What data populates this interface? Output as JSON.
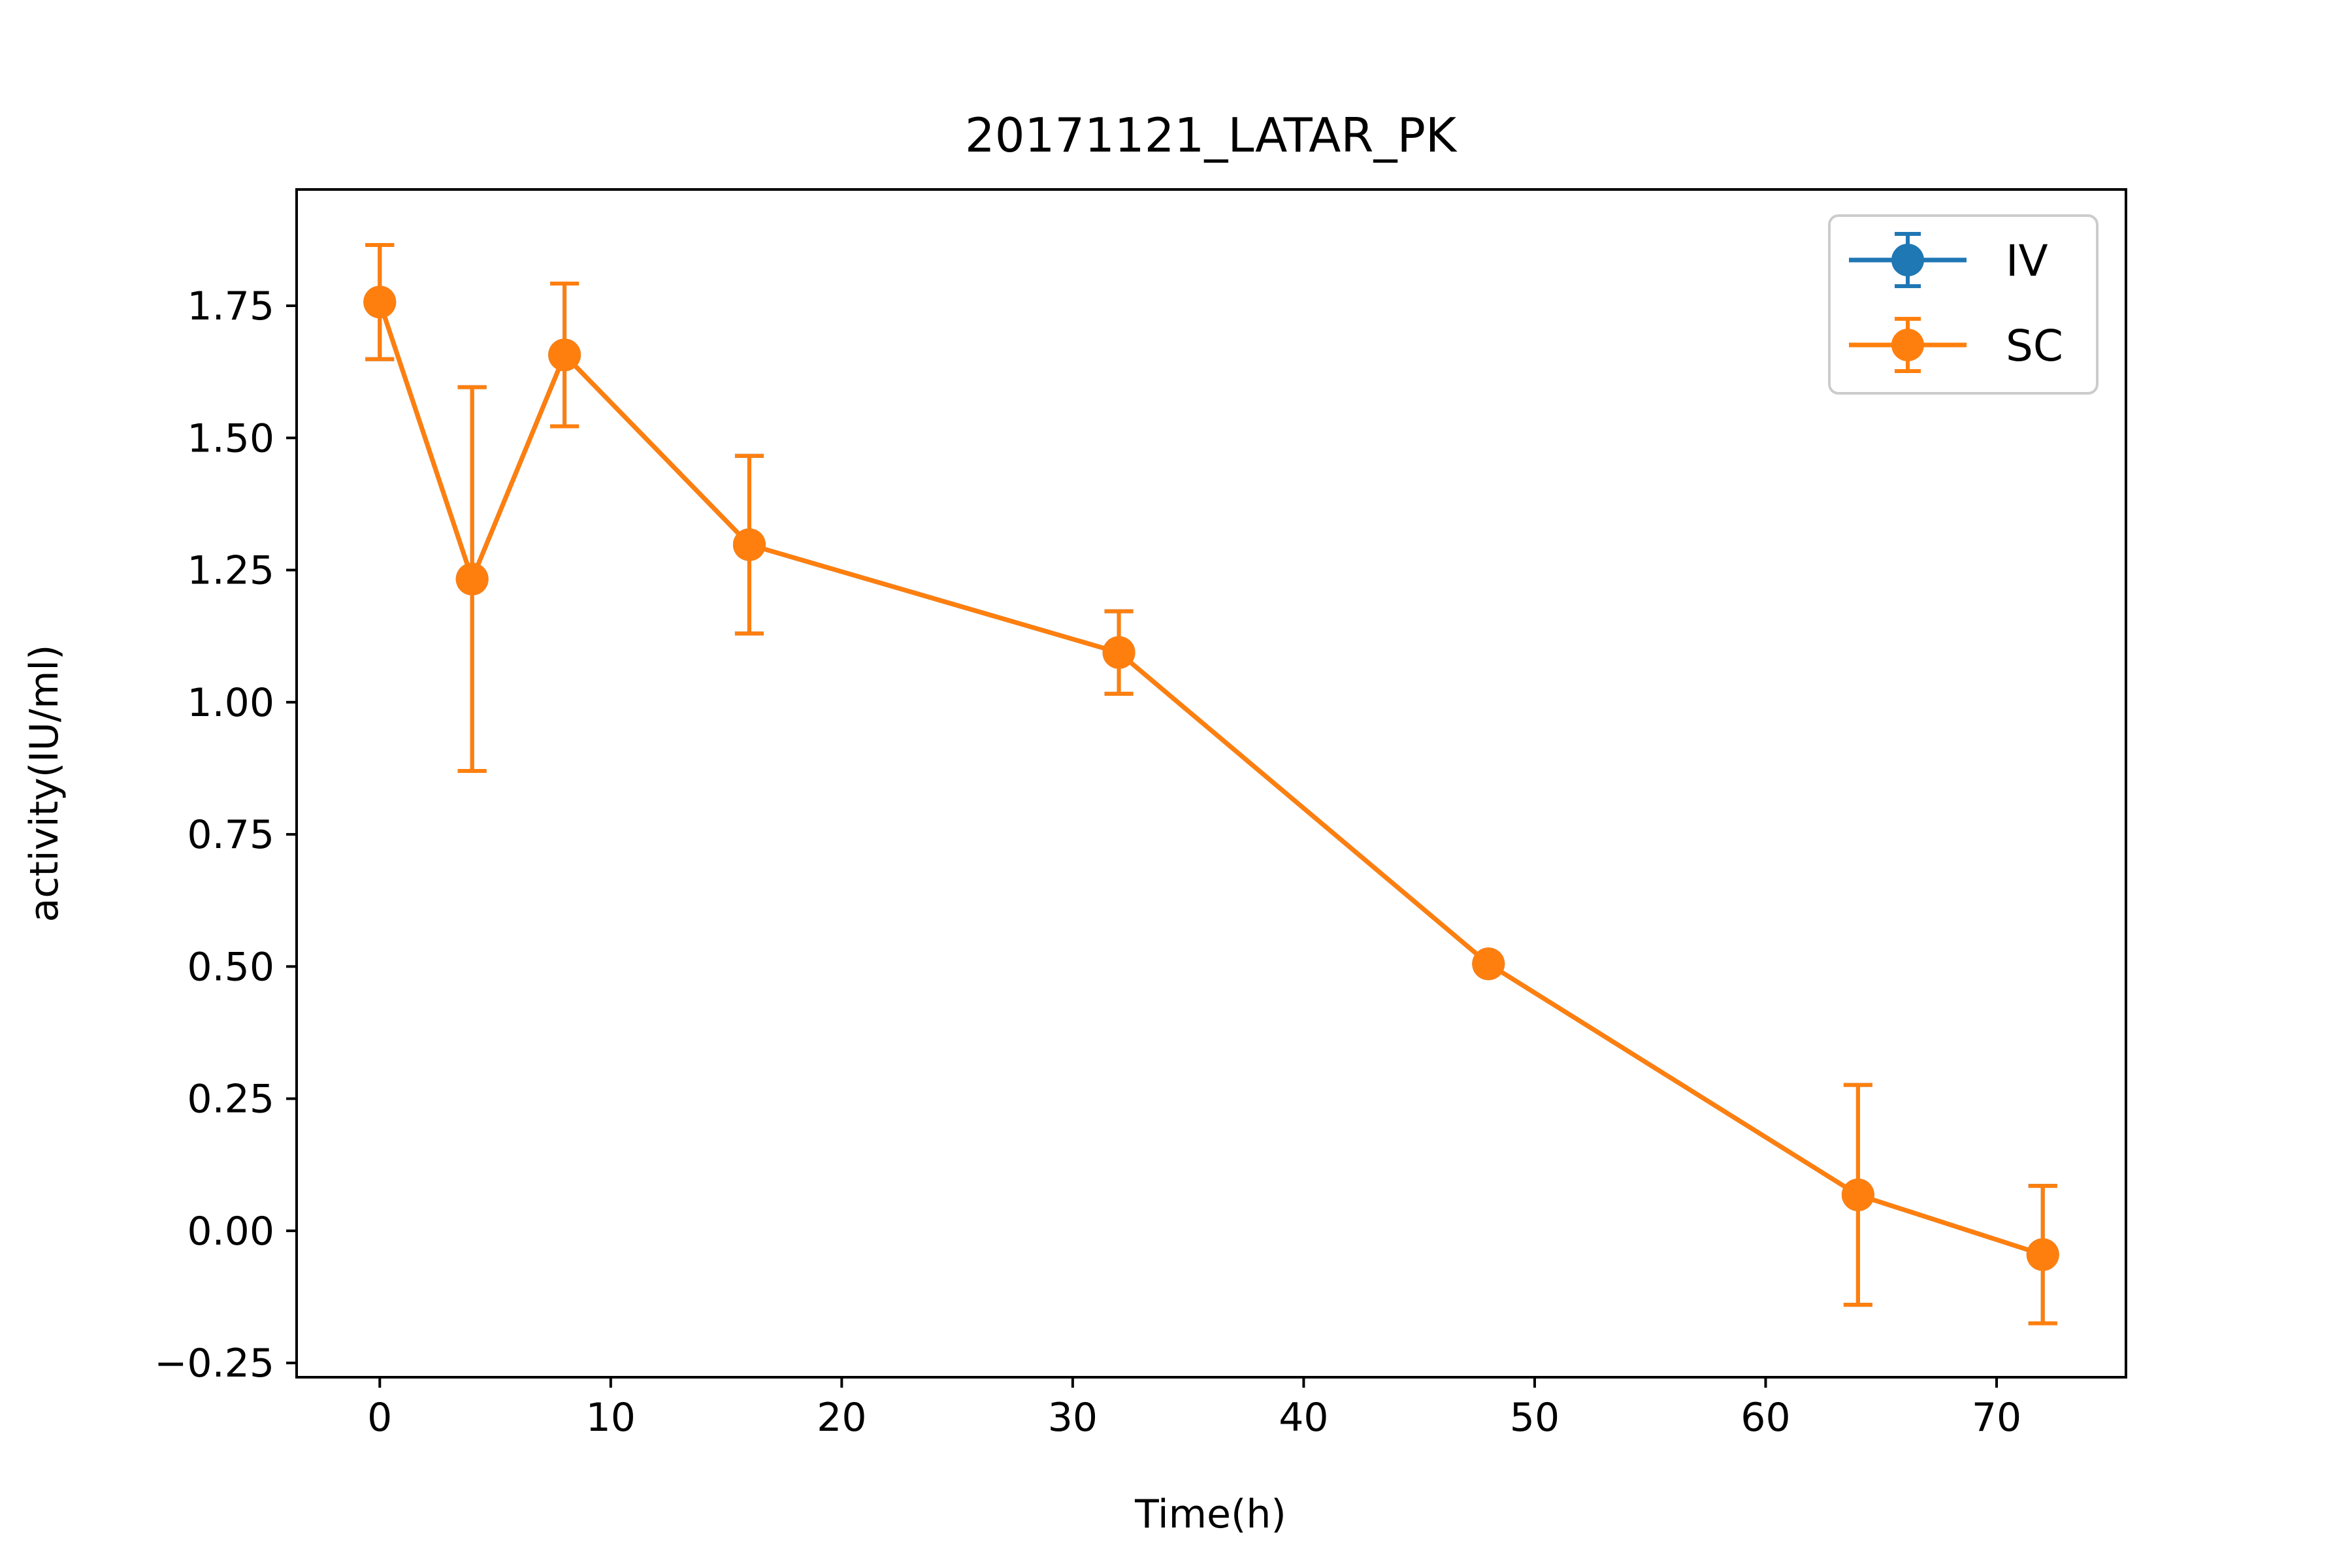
{
  "chart_data": {
    "type": "line",
    "title": "20171121_LATAR_PK",
    "xlabel": "Time(h)",
    "ylabel": "activity(IU/ml)",
    "xlim": [
      -3.6,
      75.6
    ],
    "ylim": [
      -0.277,
      1.97
    ],
    "x_ticks": [
      0,
      10,
      20,
      30,
      40,
      50,
      60,
      70
    ],
    "y_ticks": [
      -0.25,
      0.0,
      0.25,
      0.5,
      0.75,
      1.0,
      1.25,
      1.5,
      1.75
    ],
    "x_tick_labels": [
      "0",
      "10",
      "20",
      "30",
      "40",
      "50",
      "60",
      "70"
    ],
    "y_tick_labels": [
      "−0.25",
      "0.00",
      "0.25",
      "0.50",
      "0.75",
      "1.00",
      "1.25",
      "1.50",
      "1.75"
    ],
    "grid": false,
    "legend_position": "top-right",
    "series": [
      {
        "name": "IV",
        "color": "#1f77b4",
        "x": [
          0,
          4,
          8,
          16,
          32,
          48,
          64,
          72
        ],
        "y": [
          1.757,
          1.233,
          1.657,
          1.298,
          1.094,
          0.505,
          0.068,
          -0.045
        ],
        "err_low": [
          0.108,
          0.363,
          0.135,
          0.168,
          0.078,
          0.012,
          0.208,
          0.13
        ],
        "err_high": [
          0.108,
          0.363,
          0.135,
          0.168,
          0.078,
          0.012,
          0.208,
          0.13
        ]
      },
      {
        "name": "SC",
        "color": "#ff7f0e",
        "x": [
          0,
          4,
          8,
          16,
          32,
          48,
          64,
          72
        ],
        "y": [
          1.757,
          1.233,
          1.657,
          1.298,
          1.094,
          0.505,
          0.068,
          -0.045
        ],
        "err_low": [
          0.108,
          0.363,
          0.135,
          0.168,
          0.078,
          0.012,
          0.208,
          0.13
        ],
        "err_high": [
          0.108,
          0.363,
          0.135,
          0.168,
          0.078,
          0.012,
          0.208,
          0.13
        ]
      }
    ]
  }
}
